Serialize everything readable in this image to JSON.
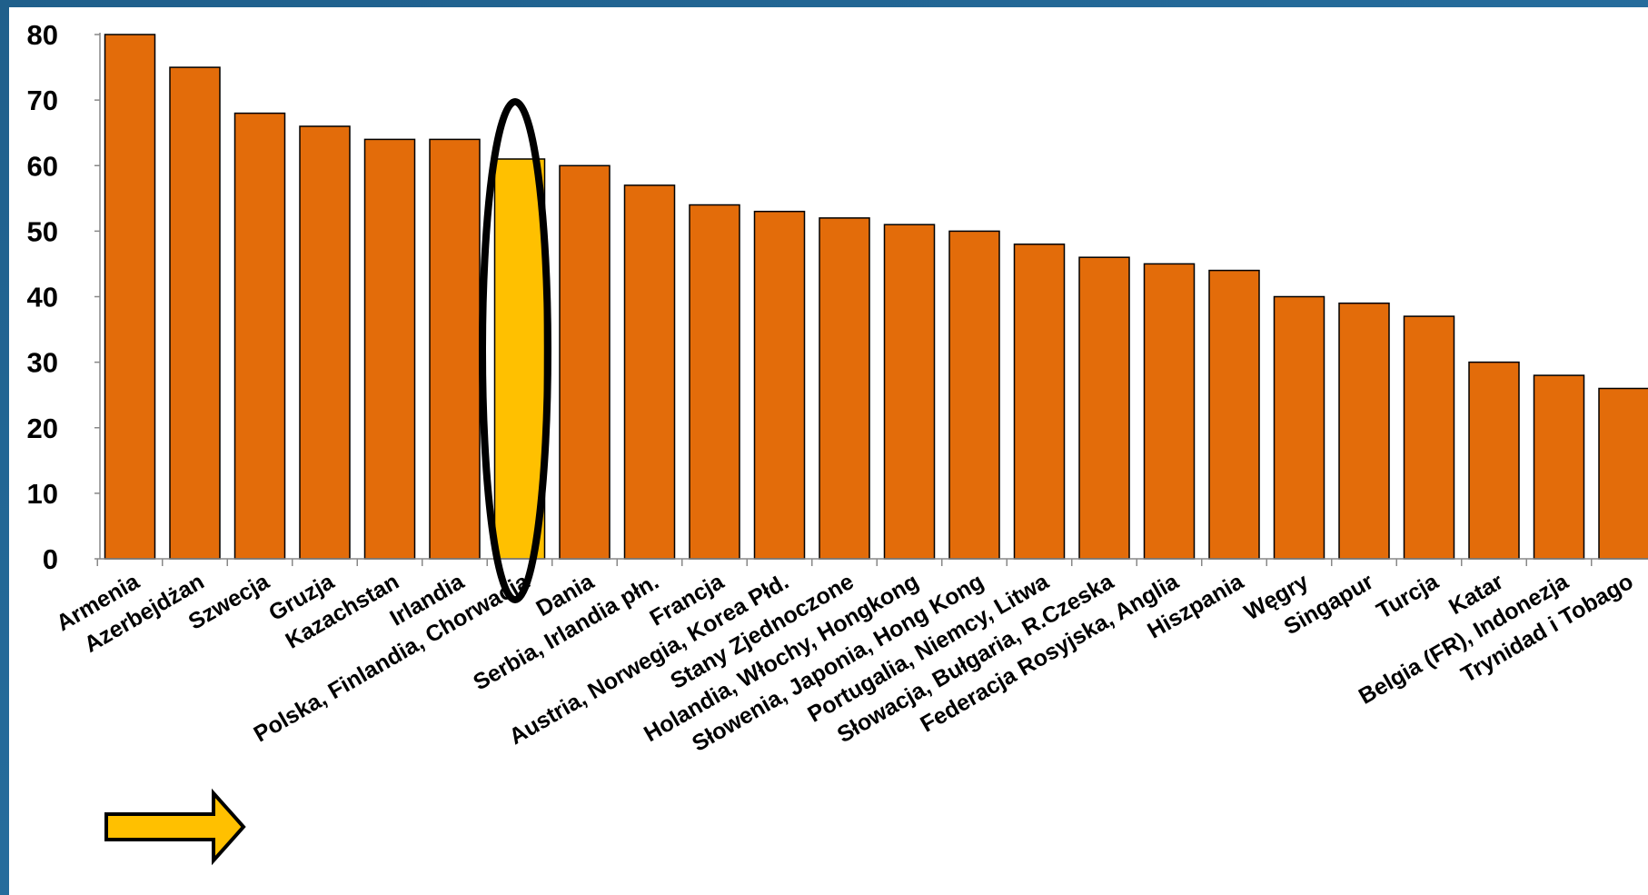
{
  "chart_data": {
    "type": "bar",
    "categories": [
      "Armenia",
      "Azerbejdżan",
      "Szwecja",
      "Gruzja",
      "Kazachstan",
      "Irlandia",
      "Polska, Finlandia, Chorwacja",
      "Dania",
      "Serbia, Irlandia płn.",
      "Francja",
      "Austria, Norwegia, Korea Płd.",
      "Stany Zjednoczone",
      "Holandia, Włochy, Hongkong",
      "Słowenia, Japonia, Hong Kong",
      "Portugalia, Niemcy, Litwa",
      "Słowacja, Bułgaria, R.Czeska",
      "Federacja Rosyjska, Anglia",
      "Hiszpania",
      "Węgry",
      "Singapur",
      "Turcja",
      "Katar",
      "Belgia (FR), Indonezja",
      "Trynidad i Tobago"
    ],
    "values": [
      80,
      75,
      68,
      66,
      64,
      64,
      61,
      60,
      57,
      54,
      53,
      52,
      51,
      50,
      48,
      46,
      45,
      44,
      40,
      39,
      37,
      30,
      28,
      26
    ],
    "highlight_index": 6,
    "yticks": [
      "0",
      "10",
      "20",
      "30",
      "40",
      "50",
      "60",
      "70",
      "80"
    ],
    "ylim": [
      0,
      80
    ],
    "grid": false,
    "legend": "none",
    "colors": {
      "bar": "#E36C0A",
      "highlight_bar": "#FFC000",
      "bar_edge": "#000000",
      "frame": "#2E6A9E",
      "ellipse": "#000000",
      "arrow": "#FFC000"
    },
    "annotations": [
      {
        "kind": "ellipse",
        "target": "Polska, Finlandia, Chorwacja"
      },
      {
        "kind": "arrow",
        "direction": "right",
        "target": "Polska, Finlandia, Chorwacja"
      }
    ]
  }
}
